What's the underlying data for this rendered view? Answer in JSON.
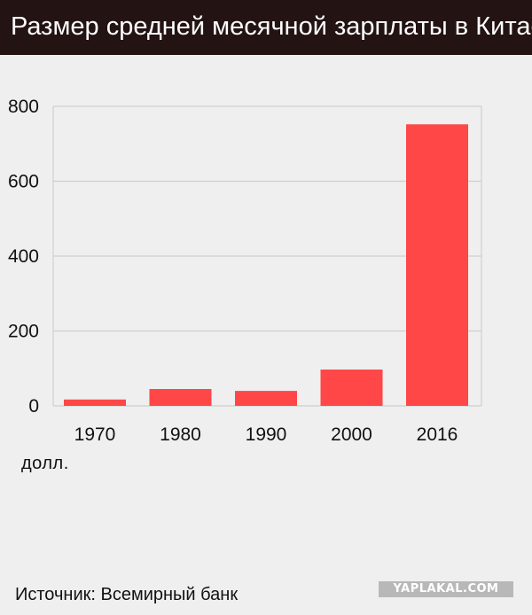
{
  "header": {
    "title": "Размер средней месячной зарплаты в Китае"
  },
  "unit_label": "долл.",
  "source": "Источник: Всемирный банк",
  "watermark": "YAPLAKAL.COM",
  "colors": {
    "header_bg": "#241313",
    "bar": "#ff4747",
    "background": "#efefef"
  },
  "chart_data": {
    "type": "bar",
    "categories": [
      "1970",
      "1980",
      "1990",
      "2000",
      "2016"
    ],
    "values": [
      17,
      45,
      40,
      97,
      752
    ],
    "ylim": [
      0,
      800
    ],
    "yticks": [
      0,
      200,
      400,
      600,
      800
    ],
    "grid": true,
    "title": "Размер средней месячной зарплаты в Китае",
    "ylabel": "долл.",
    "xlabel": ""
  }
}
